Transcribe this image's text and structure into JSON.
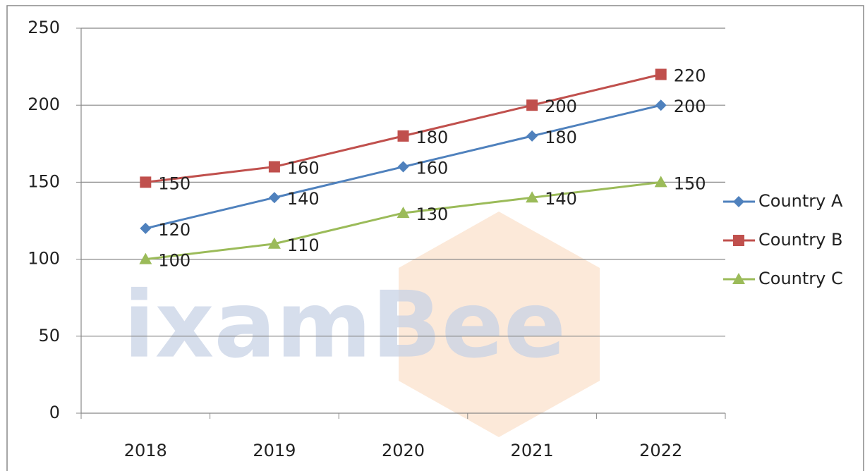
{
  "chart_data": {
    "type": "line",
    "categories": [
      "2018",
      "2019",
      "2020",
      "2021",
      "2022"
    ],
    "series": [
      {
        "name": "Country A",
        "color": "#4f81bd",
        "marker": "diamond",
        "values": [
          120,
          140,
          160,
          180,
          200
        ]
      },
      {
        "name": "Country B",
        "color": "#c0504d",
        "marker": "square",
        "values": [
          150,
          160,
          180,
          200,
          220
        ]
      },
      {
        "name": "Country C",
        "color": "#9bbb59",
        "marker": "triangle",
        "values": [
          100,
          110,
          130,
          140,
          150
        ]
      }
    ],
    "ylim": [
      0,
      250
    ],
    "yticks": [
      0,
      50,
      100,
      150,
      200,
      250
    ],
    "grid": true,
    "legend": "right",
    "watermark": "ixamBee"
  }
}
